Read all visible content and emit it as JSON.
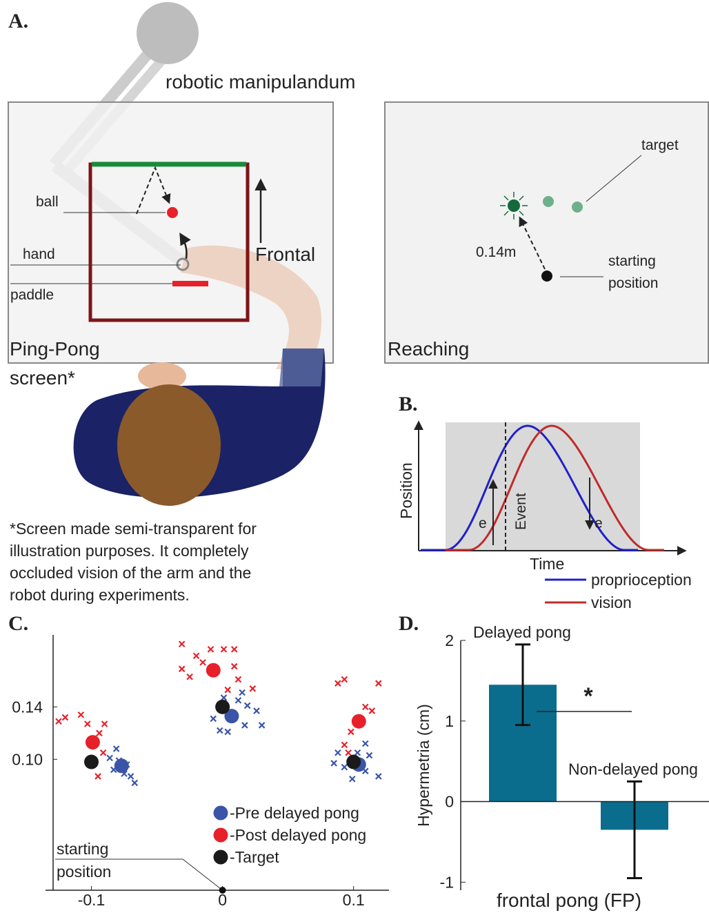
{
  "panel_a": {
    "label": "A.",
    "robot": "robotic manipulandum",
    "ping_pong": {
      "ball": "ball",
      "hand": "hand",
      "paddle": "paddle",
      "direction": "Frontal",
      "title": "Ping-Pong",
      "screen": "screen*"
    },
    "reaching": {
      "target": "target",
      "distance": "0.14m",
      "start": [
        "starting",
        "position"
      ],
      "title": "Reaching"
    },
    "footnote": [
      "*Screen made semi-transparent for",
      "illustration purposes. It completely",
      "occluded vision of the arm and the",
      "robot during experiments."
    ]
  },
  "panel_b": {
    "label": "B.",
    "y_label": "Position",
    "x_label": "Time",
    "event": "Event",
    "error_labels": [
      "e",
      "e"
    ],
    "legend": [
      {
        "name": "proprioception",
        "color": "#2020c8"
      },
      {
        "name": "vision",
        "color": "#c02a2a"
      }
    ]
  },
  "chart_data": [
    {
      "type": "scatter",
      "label": "C.",
      "xlim": [
        -0.135,
        0.127
      ],
      "ylim": [
        0,
        0.195
      ],
      "xticks": [
        -0.1,
        0,
        0.1
      ],
      "yticks": [
        {
          "value": 0.1,
          "label": "0.10"
        },
        0.14
      ],
      "annotation": {
        "label": [
          "starting",
          "position"
        ],
        "x": 0,
        "y": 0
      },
      "series": [
        {
          "color": "#e8202a",
          "marker": "x",
          "x": [
            -0.125,
            -0.12,
            -0.108,
            -0.103,
            -0.09,
            -0.094,
            -0.091,
            -0.095,
            -0.031,
            -0.02,
            -0.009,
            0.001,
            0.009,
            -0.031,
            -0.015,
            0.009,
            0.012,
            0.004,
            -0.025,
            0.023,
            0.088,
            0.093,
            0.119,
            0.114,
            0.109,
            0.093,
            0.096,
            0.098
          ],
          "values": [
            0.129,
            0.132,
            0.134,
            0.127,
            0.127,
            0.12,
            0.105,
            0.087,
            0.188,
            0.179,
            0.184,
            0.184,
            0.184,
            0.169,
            0.174,
            0.171,
            0.161,
            0.153,
            0.163,
            0.154,
            0.158,
            0.161,
            0.158,
            0.137,
            0.14,
            0.111,
            0.105,
            0.121
          ]
        },
        {
          "color": "#3a55a8",
          "marker": "x",
          "x": [
            -0.081,
            -0.086,
            -0.079,
            -0.075,
            -0.07,
            -0.083,
            -0.073,
            -0.067,
            0.001,
            0.012,
            0.019,
            0.026,
            0.017,
            0.03,
            -0.007,
            -0.002,
            0.015,
            0.004,
            0.085,
            0.093,
            0.103,
            0.109,
            0.112,
            0.119,
            0.099,
            0.109,
            0.088
          ],
          "values": [
            0.108,
            0.101,
            0.099,
            0.089,
            0.087,
            0.092,
            0.096,
            0.082,
            0.147,
            0.145,
            0.141,
            0.137,
            0.126,
            0.126,
            0.131,
            0.122,
            0.151,
            0.121,
            0.097,
            0.094,
            0.105,
            0.112,
            0.103,
            0.087,
            0.085,
            0.091,
            0.105
          ]
        },
        {
          "name": "-Pre delayed pong",
          "color": "#3a55a8",
          "marker": "dot",
          "x": [
            -0.077,
            0.007,
            0.104
          ],
          "values": [
            0.095,
            0.133,
            0.096
          ]
        },
        {
          "name": "-Post delayed pong",
          "color": "#e8202a",
          "marker": "dot",
          "x": [
            -0.099,
            -0.007,
            0.104
          ],
          "values": [
            0.113,
            0.168,
            0.129
          ]
        },
        {
          "name": "-Target",
          "color": "#1a1a1a",
          "marker": "dot",
          "x": [
            -0.1,
            0,
            0.1
          ],
          "values": [
            0.098,
            0.14,
            0.098
          ]
        }
      ]
    },
    {
      "type": "bar",
      "label": "D.",
      "categories": [
        "Delayed pong",
        "Non-delayed pong"
      ],
      "values": [
        1.45,
        -0.35
      ],
      "errors": [
        0.5,
        0.6
      ],
      "color": "#0b6d8d",
      "ylim": [
        -1.1,
        2
      ],
      "yticks": [
        -1,
        0,
        1,
        2
      ],
      "y_label": "Hypermetria (cm)",
      "x_label": "frontal pong (FP)",
      "annotation": "*"
    }
  ]
}
